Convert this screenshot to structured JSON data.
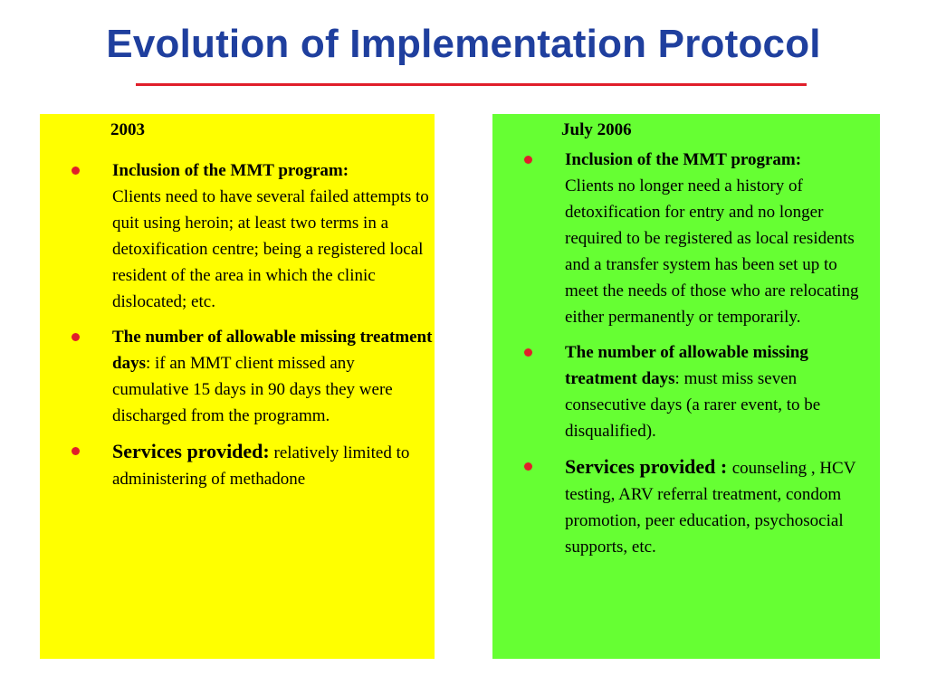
{
  "slide": {
    "title": "Evolution of Implementation Protocol",
    "colors": {
      "title": "#1f3f9e",
      "rule": "#e01f2a",
      "left_panel": "#ffff00",
      "right_panel": "#66ff33",
      "bullet": "#e01f2a"
    }
  },
  "left": {
    "year": "2003",
    "bullets": [
      {
        "heading": "Inclusion of the MMT program:",
        "text": "Clients need to have several failed attempts to quit using heroin;  at least two terms in a detoxification centre; being a registered local resident of the area in which the clinic dislocated; etc."
      },
      {
        "heading": "The number of allowable missing treatment days",
        "text": ": if an MMT client missed any cumulative 15 days in 90 days they were discharged from the programm."
      },
      {
        "heading": "Services provided:",
        "text": "  relatively limited to administering of methadone"
      }
    ]
  },
  "right": {
    "year": "July  2006",
    "bullets": [
      {
        "heading": "Inclusion of the MMT program:",
        "text": "Clients no longer need a history of detoxification for entry and no longer required to be registered as local residents and a transfer system has been set up to meet the needs of those who are relocating either permanently or temporarily."
      },
      {
        "heading": "The number of allowable missing treatment days",
        "text": ": must miss seven consecutive days (a rarer event, to be disqualified)."
      },
      {
        "heading": "Services provided : ",
        "text": "counseling , HCV testing, ARV referral treatment, condom promotion,  peer education,  psychosocial  supports, etc."
      }
    ]
  }
}
